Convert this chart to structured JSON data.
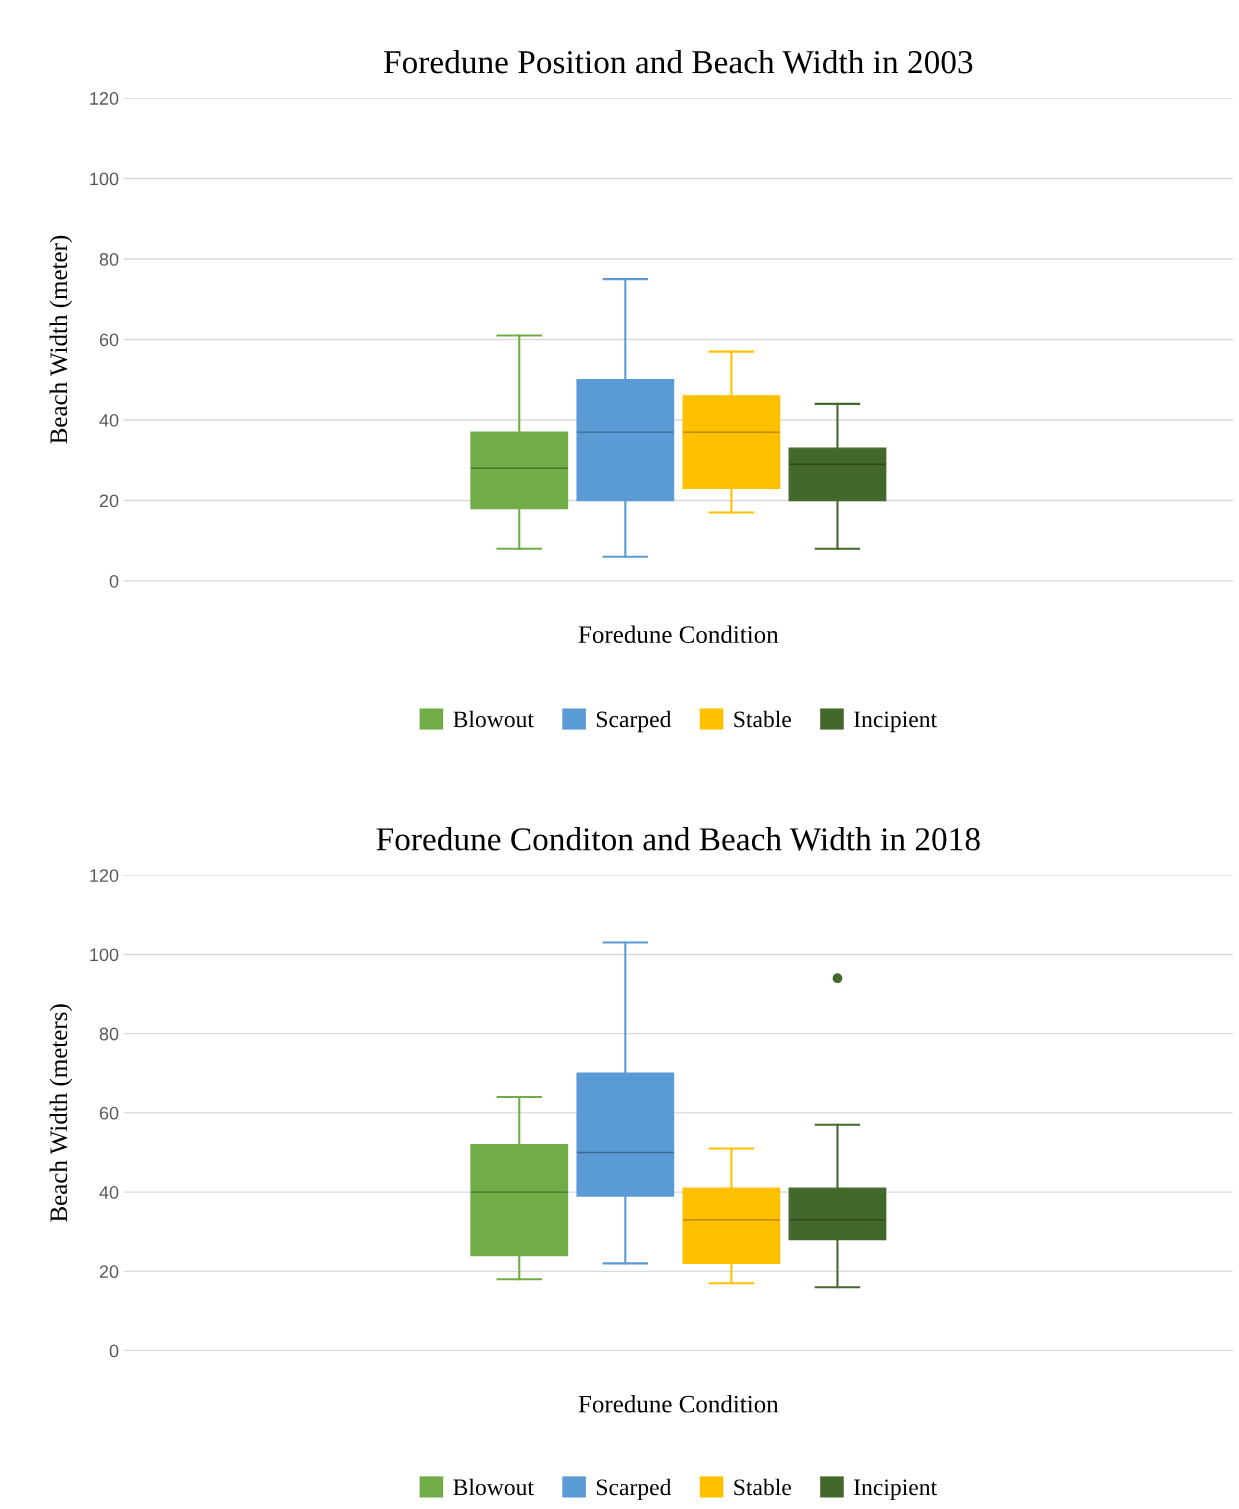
{
  "chart_data": [
    {
      "type": "box",
      "title": "Foredune Position and Beach Width in 2003",
      "xlabel": "Foredune Condition",
      "ylabel": "Beach Width (meter)",
      "categories": [
        null
      ],
      "ylim": [
        0,
        120
      ],
      "yticks": [
        0,
        20,
        40,
        60,
        80,
        100,
        120
      ],
      "grid": "y",
      "legend": "bottom",
      "tick_labels": "y",
      "series": [
        {
          "name": "Blowout",
          "color": "#70ad47",
          "boxes": [
            {
              "low": 8,
              "q1": 18,
              "median": 28,
              "q3": 37,
              "high": 61
            }
          ]
        },
        {
          "name": "Scarped",
          "color": "#5b9bd5",
          "boxes": [
            {
              "low": 6,
              "q1": 20,
              "median": 37,
              "q3": 50,
              "high": 75
            }
          ]
        },
        {
          "name": "Stable",
          "color": "#ffc000",
          "boxes": [
            {
              "low": 17,
              "q1": 23,
              "median": 37,
              "q3": 46,
              "high": 57
            }
          ]
        },
        {
          "name": "Incipient",
          "color": "#43682b",
          "boxes": [
            {
              "low": 8,
              "q1": 20,
              "median": 29,
              "q3": 33,
              "high": 44
            }
          ]
        }
      ]
    },
    {
      "type": "box",
      "title": "Foredune Conditon and Beach Width in 2018",
      "xlabel": "Foredune Condition",
      "ylabel": "Beach Width (meters)",
      "categories": [
        null
      ],
      "ylim": [
        0,
        120
      ],
      "yticks": [
        0,
        20,
        40,
        60,
        80,
        100,
        120
      ],
      "grid": "y",
      "legend": "bottom",
      "tick_labels": "y",
      "series": [
        {
          "name": "Blowout",
          "color": "#70ad47",
          "boxes": [
            {
              "low": 18,
              "q1": 24,
              "median": 40,
              "q3": 52,
              "high": 64
            }
          ]
        },
        {
          "name": "Scarped",
          "color": "#5b9bd5",
          "boxes": [
            {
              "low": 22,
              "q1": 39,
              "median": 50,
              "q3": 70,
              "high": 103
            }
          ]
        },
        {
          "name": "Stable",
          "color": "#ffc000",
          "boxes": [
            {
              "low": 17,
              "q1": 22,
              "median": 33,
              "q3": 41,
              "high": 51
            }
          ]
        },
        {
          "name": "Incipient",
          "color": "#43682b",
          "boxes": [
            {
              "low": 16,
              "q1": 28,
              "median": 33,
              "q3": 41,
              "high": 57,
              "outliers": [
                94
              ]
            }
          ]
        }
      ]
    }
  ]
}
